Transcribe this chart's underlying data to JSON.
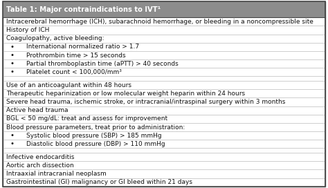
{
  "title": "Table 1: Major contraindications to IVT¹",
  "title_bg": "#8C8C8C",
  "title_color": "#FFFFFF",
  "table_bg": "#FFFFFF",
  "border_color": "#444444",
  "text_color": "#111111",
  "row_line_color": "#BBBBBB",
  "rows": [
    {
      "text": "Intracerebral hemorrhage (ICH), subarachnoid hemorrhage, or bleeding in a noncompressible site",
      "indent": 0,
      "bullet": false,
      "extra_space_after": false
    },
    {
      "text": "History of ICH",
      "indent": 0,
      "bullet": false,
      "extra_space_after": false
    },
    {
      "text": "Coagulopathy, active bleeding:",
      "indent": 0,
      "bullet": false,
      "extra_space_after": false
    },
    {
      "text": "International normalized ratio > 1.7",
      "indent": 1,
      "bullet": true,
      "extra_space_after": false
    },
    {
      "text": "Prothrombin time > 15 seconds",
      "indent": 1,
      "bullet": true,
      "extra_space_after": false
    },
    {
      "text": "Partial thromboplastin time (aPTT) > 40 seconds",
      "indent": 1,
      "bullet": true,
      "extra_space_after": false
    },
    {
      "text": "Platelet count < 100,000/mm³",
      "indent": 1,
      "bullet": true,
      "extra_space_after": true
    },
    {
      "text": "Use of an anticoagulant within 48 hours",
      "indent": 0,
      "bullet": false,
      "extra_space_after": false
    },
    {
      "text": "Therapeutic heparinization or low molecular weight heparin within 24 hours",
      "indent": 0,
      "bullet": false,
      "extra_space_after": false
    },
    {
      "text": "Severe head trauma, ischemic stroke, or intracranial/intraspinal surgery within 3 months",
      "indent": 0,
      "bullet": false,
      "extra_space_after": false
    },
    {
      "text": "Active head trauma",
      "indent": 0,
      "bullet": false,
      "extra_space_after": false
    },
    {
      "text": "BGL < 50 mg/dL: treat and assess for improvement",
      "indent": 0,
      "bullet": false,
      "extra_space_after": false
    },
    {
      "text": "Blood pressure parameters, treat prior to administration:",
      "indent": 0,
      "bullet": false,
      "extra_space_after": false
    },
    {
      "text": "Systolic blood pressure (SBP) > 185 mmHg",
      "indent": 1,
      "bullet": true,
      "extra_space_after": false
    },
    {
      "text": "Diastolic blood pressure (DBP) > 110 mmHg",
      "indent": 1,
      "bullet": true,
      "extra_space_after": true
    },
    {
      "text": "Infective endocarditis",
      "indent": 0,
      "bullet": false,
      "extra_space_after": false
    },
    {
      "text": "Aortic arch dissection",
      "indent": 0,
      "bullet": false,
      "extra_space_after": false
    },
    {
      "text": "Intraaxial intracranial neoplasm",
      "indent": 0,
      "bullet": false,
      "extra_space_after": false
    },
    {
      "text": "Gastrointestinal (GI) malignancy or GI bleed within 21 days",
      "indent": 0,
      "bullet": false,
      "extra_space_after": false
    }
  ],
  "font_size": 6.5,
  "title_font_size": 7.2,
  "figsize": [
    4.74,
    2.72
  ],
  "dpi": 100
}
